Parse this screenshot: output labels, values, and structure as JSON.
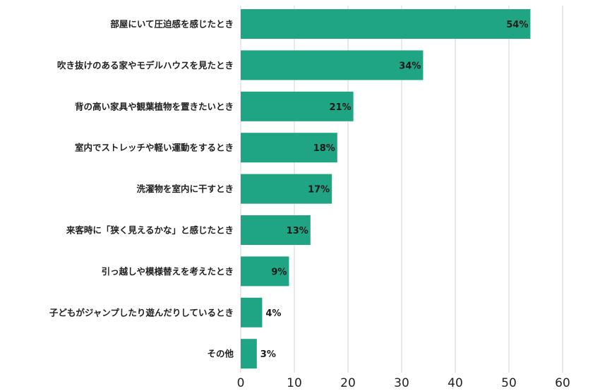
{
  "chart_data": {
    "type": "bar",
    "orientation": "horizontal",
    "categories": [
      "部屋にいて圧迫感を感じたとき",
      "吹き抜けのある家やモデルハウスを見たとき",
      "背の高い家具や観葉植物を置きたいとき",
      "室内でストレッチや軽い運動をするとき",
      "洗濯物を室内に干すとき",
      "来客時に「狭く見えるかな」と感じたとき",
      "引っ越しや模様替えを考えたとき",
      "子どもがジャンプしたり遊んだりしているとき",
      "その他"
    ],
    "values": [
      54,
      34,
      21,
      18,
      17,
      13,
      9,
      4,
      3
    ],
    "value_labels": [
      "54%",
      "34%",
      "21%",
      "18%",
      "17%",
      "13%",
      "9%",
      "4%",
      "3%"
    ],
    "xlim": [
      0,
      60
    ],
    "x_ticks": [
      "0",
      "10",
      "20",
      "30",
      "40",
      "50",
      "60"
    ],
    "grid": true,
    "bar_color": "#1fa484",
    "grid_color": "#d4d4d4"
  }
}
